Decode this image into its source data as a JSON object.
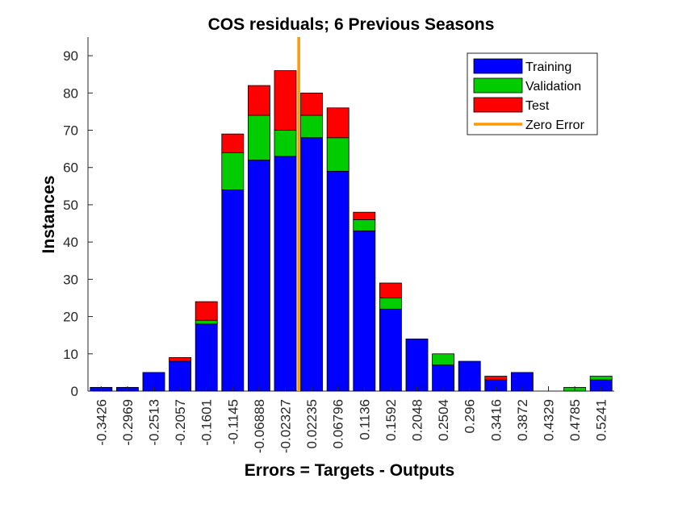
{
  "chart_data": {
    "type": "bar",
    "stacked": true,
    "title": "COS residuals; 6 Previous Seasons",
    "xlabel": "Errors = Targets - Outputs",
    "ylabel": "Instances",
    "categories": [
      "-0.3426",
      "-0.2969",
      "-0.2513",
      "-0.2057",
      "-0.1601",
      "-0.1145",
      "-0.06888",
      "-0.02327",
      "0.02235",
      "0.06796",
      "0.1136",
      "0.1592",
      "0.2048",
      "0.2504",
      "0.296",
      "0.3416",
      "0.3872",
      "0.4329",
      "0.4785",
      "0.5241"
    ],
    "series": [
      {
        "name": "Training",
        "color": "#0000ff",
        "values": [
          1,
          1,
          5,
          8,
          18,
          54,
          62,
          63,
          68,
          59,
          43,
          22,
          14,
          7,
          8,
          3,
          5,
          0,
          0,
          3
        ]
      },
      {
        "name": "Validation",
        "color": "#00cc00",
        "values": [
          0,
          0,
          0,
          0,
          1,
          10,
          12,
          7,
          6,
          9,
          3,
          3,
          0,
          3,
          0,
          0,
          0,
          0,
          1,
          1
        ]
      },
      {
        "name": "Test",
        "color": "#ff0000",
        "values": [
          0,
          0,
          0,
          1,
          5,
          5,
          8,
          16,
          6,
          8,
          2,
          4,
          0,
          0,
          0,
          1,
          0,
          0,
          0,
          0
        ]
      }
    ],
    "zero_error": {
      "name": "Zero Error",
      "color": "#ff9900",
      "x": 0
    },
    "ylim": [
      0,
      95
    ],
    "yticks": [
      0,
      10,
      20,
      30,
      40,
      50,
      60,
      70,
      80,
      90
    ],
    "grid": false,
    "legend_position": "top-right"
  }
}
